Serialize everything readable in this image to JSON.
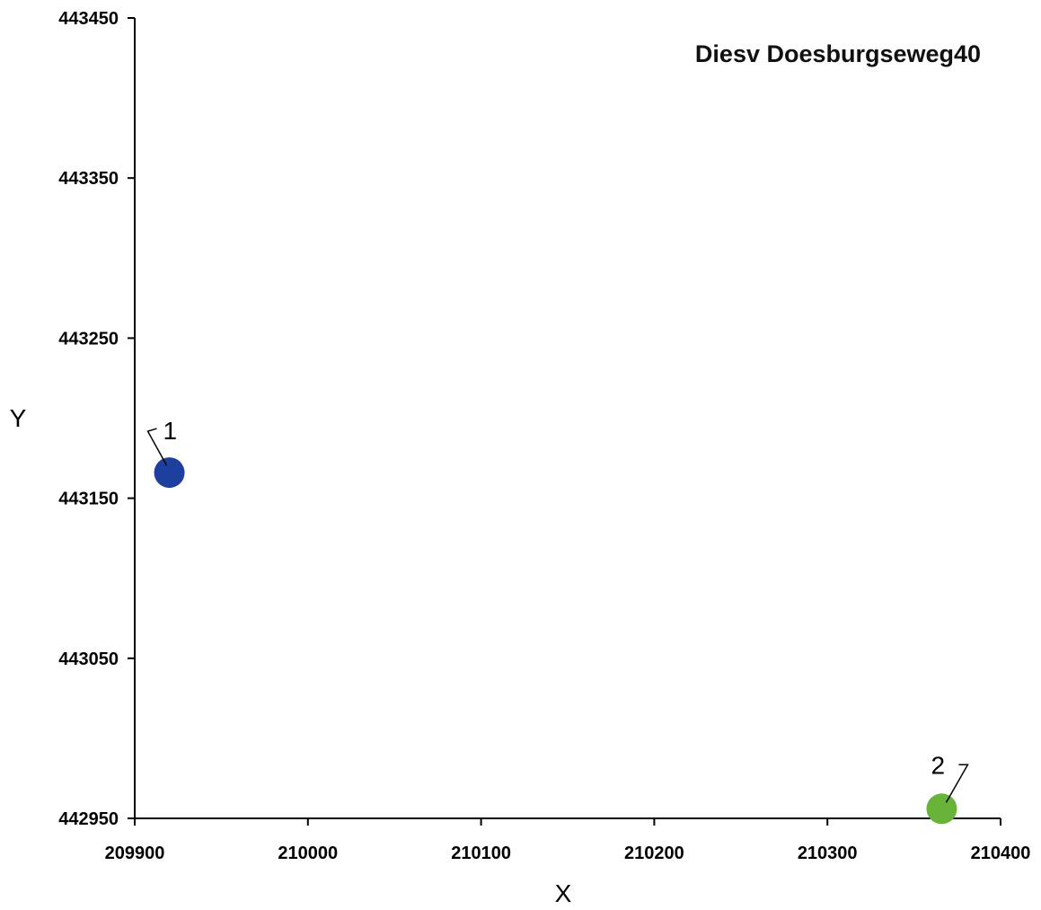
{
  "chart_data": {
    "type": "scatter",
    "title": "Diesv Doesburgseweg40",
    "xlabel": "X",
    "ylabel": "Y",
    "xlim": [
      209900,
      210400
    ],
    "ylim": [
      442950,
      443450
    ],
    "xticks": [
      "209900",
      "210000",
      "210100",
      "210200",
      "210300",
      "210400"
    ],
    "yticks": [
      "442950",
      "443050",
      "443150",
      "443250",
      "443350",
      "443450"
    ],
    "grid": false,
    "legend": "none",
    "points": [
      {
        "label": "1",
        "x": 209920,
        "y": 443166,
        "color": "#1f3f9e"
      },
      {
        "label": "2",
        "x": 210366,
        "y": 442956,
        "color": "#6ab33a"
      }
    ]
  }
}
